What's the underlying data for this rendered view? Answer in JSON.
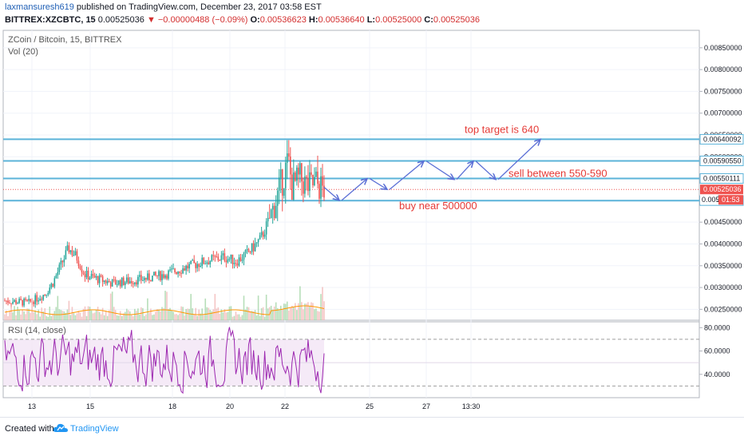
{
  "header": {
    "author": "laxmansuresh619",
    "published_text": " published on TradingView.com, December 23, 2017 03:58 EST",
    "ticker": "BITTREX:XZCBTC, 15",
    "last": "0.00525036",
    "change": "▼ −0.00000488 (−0.09%)",
    "o_label": "O:",
    "o": "0.00536623",
    "h_label": "H:",
    "h": "0.00536640",
    "l_label": "L:",
    "l": "0.00525000",
    "c_label": "C:",
    "c": "0.00525036"
  },
  "legend": {
    "symbol": "ZCoin / Bitcoin, 15, BITTREX",
    "volume": "Vol (20)",
    "rsi": "RSI (14, close)"
  },
  "footer": {
    "created": "Created with",
    "brand": "TradingView"
  },
  "colors": {
    "up": "#26a69a",
    "down": "#ef5350",
    "hline": "#5bb3d9",
    "arrow": "#5b6fd6",
    "annotation": "#e53935",
    "rsi": "#9c27b0",
    "rsi_band": "#f3e5f5"
  },
  "chart_data": [
    {
      "type": "candlestick",
      "title": "ZCoin / Bitcoin, 15, BITTREX",
      "x_ticks": [
        "13",
        "15",
        "18",
        "20",
        "22",
        "25",
        "27",
        "13:30"
      ],
      "y_ticks": [
        "0.00850000",
        "0.00800000",
        "0.00750000",
        "0.00700000",
        "0.00650000",
        "0.00600000",
        "0.00550000",
        "0.00500000",
        "0.00450000",
        "0.00400000",
        "0.00350000",
        "0.00300000",
        "0.00250000"
      ],
      "ylim": [
        0.00225,
        0.0089
      ],
      "horizontal_lines": [
        {
          "value": 0.00640092,
          "label": "0.00640092"
        },
        {
          "value": 0.0059055,
          "label": "0.00590550"
        },
        {
          "value": 0.00550111,
          "label": "0.00550111"
        },
        {
          "value": 0.00499445,
          "label": "0.00499445"
        }
      ],
      "current_price": {
        "value": 0.00525036,
        "label": "0.00525036",
        "countdown_label": "0.005",
        "countdown": "01:53"
      },
      "price_path": [
        [
          0,
          0.0027
        ],
        [
          6,
          0.00265
        ],
        [
          10,
          0.00285
        ],
        [
          12,
          0.0031
        ],
        [
          14,
          0.0035
        ],
        [
          16,
          0.0039
        ],
        [
          18,
          0.0037
        ],
        [
          20,
          0.0033
        ],
        [
          23,
          0.0032
        ],
        [
          27,
          0.0031
        ],
        [
          31,
          0.00315
        ],
        [
          35,
          0.0032
        ],
        [
          40,
          0.0033
        ],
        [
          45,
          0.00345
        ],
        [
          50,
          0.0036
        ],
        [
          55,
          0.0037
        ],
        [
          58,
          0.0036
        ],
        [
          61,
          0.0038
        ],
        [
          64,
          0.0041
        ],
        [
          66,
          0.0045
        ],
        [
          68,
          0.005
        ],
        [
          70,
          0.0056
        ],
        [
          71,
          0.0059
        ],
        [
          72,
          0.0053
        ],
        [
          74,
          0.0055
        ],
        [
          76,
          0.0053
        ],
        [
          78,
          0.0054
        ],
        [
          79,
          0.0053
        ],
        [
          80,
          0.00525
        ]
      ],
      "annotations": [
        {
          "text": "top target is 640"
        },
        {
          "text": "sell between 550-590"
        },
        {
          "text": "buy near 500000"
        }
      ],
      "projection_path": [
        [
          0.0053,
          0
        ],
        [
          0.005,
          1
        ],
        [
          0.0055,
          2
        ],
        [
          0.00525,
          3
        ],
        [
          0.0059,
          4
        ],
        [
          0.0055,
          5
        ],
        [
          0.0059,
          6
        ],
        [
          0.0055,
          7
        ],
        [
          0.0064,
          8
        ]
      ]
    },
    {
      "type": "line",
      "title": "RSI (14, close)",
      "y_ticks": [
        "80.0000",
        "60.0000",
        "40.0000"
      ],
      "ylim": [
        20,
        85
      ],
      "bands": [
        30,
        70
      ]
    }
  ]
}
